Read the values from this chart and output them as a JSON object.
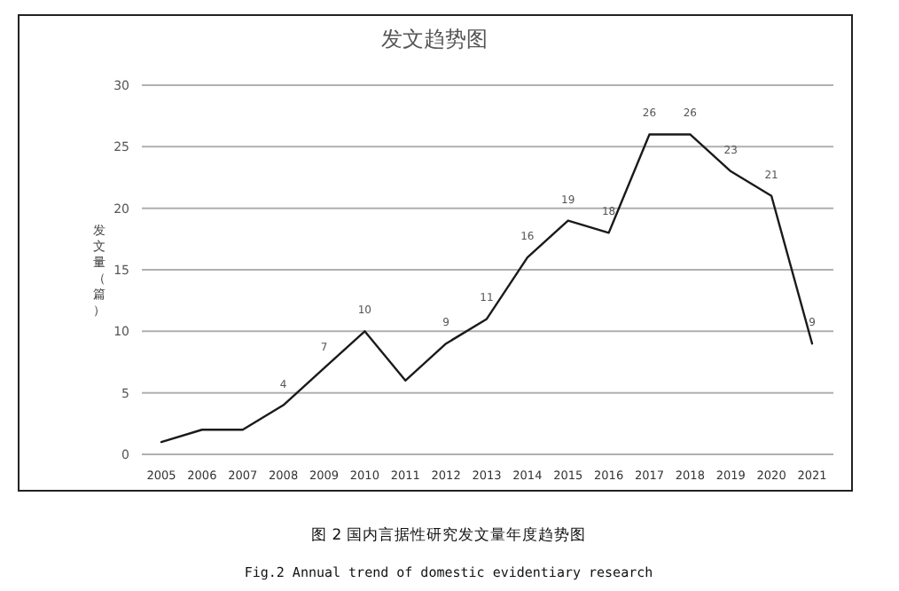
{
  "chart_data": {
    "type": "line",
    "title": "发文趋势图",
    "ylabel": "发文量（篇）",
    "categories": [
      "2005",
      "2006",
      "2007",
      "2008",
      "2009",
      "2010",
      "2011",
      "2012",
      "2013",
      "2014",
      "2015",
      "2016",
      "2017",
      "2018",
      "2019",
      "2020",
      "2021"
    ],
    "values": [
      1,
      2,
      2,
      4,
      7,
      10,
      6,
      9,
      11,
      16,
      19,
      18,
      26,
      26,
      23,
      21,
      9
    ],
    "value_labels": [
      null,
      null,
      null,
      "4",
      "7",
      "10",
      null,
      "9",
      "11",
      "16",
      "19",
      "18",
      "26",
      "26",
      "23",
      "21",
      "9"
    ],
    "color": "#1a1a1a",
    "ylim": [
      0,
      30
    ],
    "yticks": [
      0,
      5,
      10,
      15,
      20,
      25,
      30
    ],
    "grid": "y",
    "annotations": [
      "图 2 国内言据性研究发文量年度趋势图",
      "Fig.2 Annual trend of domestic evidentiary research"
    ]
  }
}
